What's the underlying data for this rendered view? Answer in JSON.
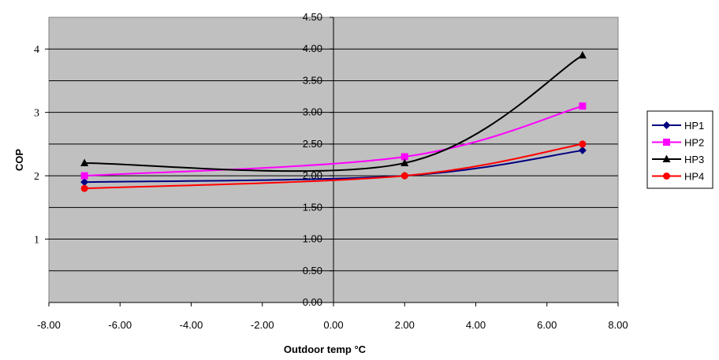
{
  "chart_data": {
    "type": "line",
    "xlabel": "Outdoor temp °C",
    "ylabel": "COP",
    "xlim": [
      -8,
      8
    ],
    "ylim": [
      0,
      4.5
    ],
    "x_ticks": [
      "-8.00",
      "-6.00",
      "-4.00",
      "-2.00",
      "0.00",
      "2.00",
      "4.00",
      "6.00",
      "8.00"
    ],
    "y_ticks_center": [
      "0.00",
      "0.50",
      "1.00",
      "1.50",
      "2.00",
      "2.50",
      "3.00",
      "3.50",
      "4.00",
      "4.50"
    ],
    "y_ticks_left": [
      "1",
      "2",
      "3",
      "4"
    ],
    "plot_background": "#c0c0c0",
    "grid": true,
    "legend_position": "right",
    "x": [
      -7,
      2,
      7
    ],
    "series": [
      {
        "name": "HP1",
        "values": [
          1.9,
          2.0,
          2.4
        ],
        "color": "#000080",
        "marker": "diamond"
      },
      {
        "name": "HP2",
        "values": [
          2.0,
          2.3,
          3.1
        ],
        "color": "#ff00ff",
        "marker": "square"
      },
      {
        "name": "HP3",
        "values": [
          2.2,
          2.2,
          3.9
        ],
        "color": "#000000",
        "marker": "triangle"
      },
      {
        "name": "HP4",
        "values": [
          1.8,
          2.0,
          2.5
        ],
        "color": "#ff0000",
        "marker": "circle"
      }
    ]
  }
}
